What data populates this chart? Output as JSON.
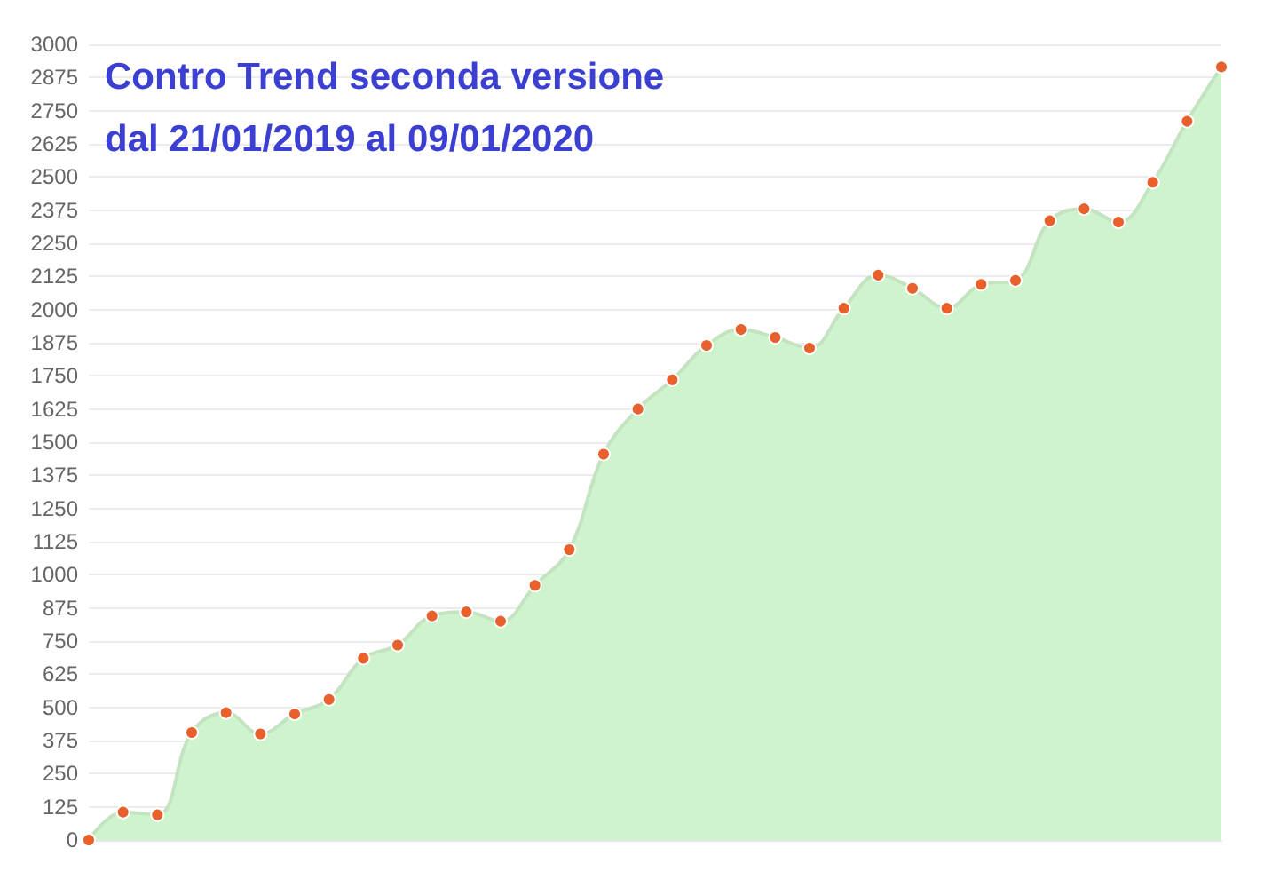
{
  "chart_data": {
    "type": "area",
    "title": "Contro Trend seconda versione",
    "subtitle": "dal 21/01/2019 al 09/01/2020",
    "categories": [
      null,
      null,
      null,
      null,
      null,
      null,
      null,
      null,
      null,
      null,
      null,
      null,
      null,
      null,
      null,
      null,
      null,
      null,
      null,
      null,
      null,
      null,
      null,
      null,
      null,
      null,
      null,
      null,
      null,
      null,
      null,
      null,
      null,
      null
    ],
    "series": [
      {
        "color": "#cff3cc",
        "values": [
          0,
          105,
          95,
          405,
          480,
          400,
          475,
          530,
          685,
          735,
          845,
          860,
          825,
          960,
          1095,
          1455,
          1625,
          1735,
          1865,
          1925,
          1895,
          1855,
          2005,
          2130,
          2080,
          2005,
          2095,
          2110,
          2335,
          2380,
          2330,
          2480,
          2710,
          2915
        ]
      }
    ],
    "ylim": [
      0,
      3000
    ],
    "yticks": [
      0,
      125,
      250,
      375,
      500,
      625,
      750,
      875,
      1000,
      1125,
      1250,
      1375,
      1500,
      1625,
      1750,
      1875,
      2000,
      2125,
      2250,
      2375,
      2500,
      2625,
      2750,
      2875,
      3000
    ],
    "grid": "y",
    "marker": "circle",
    "tick_labels": "y"
  }
}
